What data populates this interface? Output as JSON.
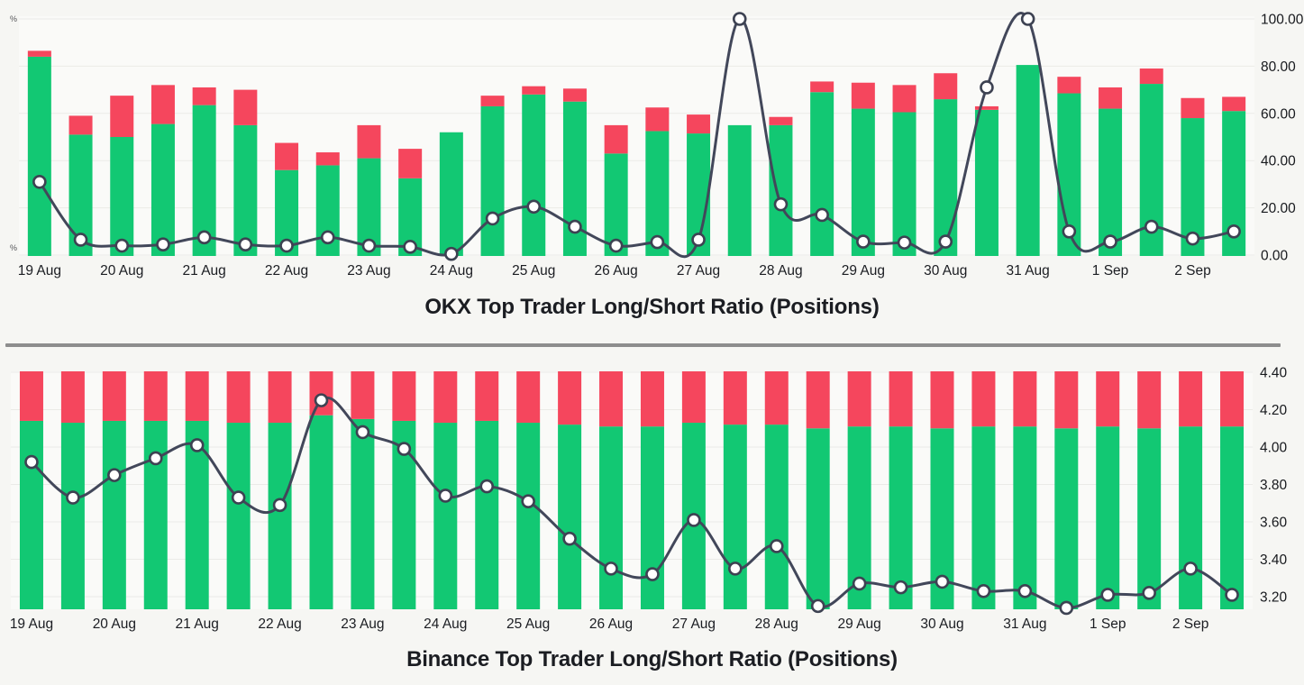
{
  "colors": {
    "long_green": "#12c873",
    "short_red": "#f5465d",
    "line": "#42475a",
    "marker_fill": "#ffffff",
    "marker_stroke": "#3d4252",
    "grid": "#ebebe7",
    "plot_bg": "#fafaf8",
    "page_bg": "#f6f6f3",
    "divider": "#8d8d8d",
    "text_dark": "#1b1d22"
  },
  "divider": {
    "present": true
  },
  "chart_data": [
    {
      "id": "okx",
      "title": "OKX Top Trader Long/Short Ratio (Positions)",
      "type": "stacked-bar+line",
      "categories": [
        "19 Aug",
        "20 Aug",
        "21 Aug",
        "22 Aug",
        "23 Aug",
        "24 Aug",
        "25 Aug",
        "26 Aug",
        "27 Aug",
        "28 Aug",
        "29 Aug",
        "30 Aug",
        "31 Aug",
        "1 Sep",
        "2 Sep"
      ],
      "bars_per_label": 2,
      "bar_base": 0,
      "grid": "on",
      "legend_position": "none",
      "left_axis_fragments": [
        "%",
        "%"
      ],
      "y_axis_right": {
        "min": 0,
        "max": 100,
        "ticks": [
          {
            "value": 100,
            "label": "100.00"
          },
          {
            "value": 80,
            "label": "80.00"
          },
          {
            "value": 60,
            "label": "60.00"
          },
          {
            "value": 40,
            "label": "40.00"
          },
          {
            "value": 20,
            "label": "20.00"
          },
          {
            "value": 0,
            "label": "0.00"
          }
        ]
      },
      "series": [
        {
          "name": "Long",
          "role": "bar-bottom",
          "color_key": "long_green",
          "values": [
            84,
            51,
            50,
            55.5,
            63.5,
            55,
            36,
            38,
            41,
            32.5,
            52,
            63,
            68,
            65,
            43,
            52.5,
            51.5,
            55,
            55,
            69,
            62,
            60.5,
            66,
            61.5,
            80.5,
            68.5,
            62,
            72.5,
            58,
            61
          ]
        },
        {
          "name": "Short",
          "role": "bar-top",
          "color_key": "short_red",
          "values": [
            2.5,
            8,
            17.5,
            16.5,
            7.5,
            15,
            11.5,
            5.5,
            14,
            12.5,
            0,
            4.5,
            3.5,
            5.5,
            12,
            10,
            8,
            0,
            3.5,
            4.5,
            11,
            11.5,
            11,
            1.5,
            0,
            7,
            9,
            6.5,
            8.5,
            6
          ]
        },
        {
          "name": "Ratio",
          "role": "line",
          "color_key": "line",
          "values": [
            31,
            6.5,
            4,
            4.5,
            7.5,
            4.5,
            4,
            7.5,
            4,
            3.5,
            0.5,
            15.5,
            20.5,
            12,
            4,
            5.5,
            6.5,
            100,
            21.5,
            17,
            5.7,
            5.3,
            5.7,
            71,
            100,
            10,
            5.7,
            12,
            7,
            10
          ]
        }
      ]
    },
    {
      "id": "binance",
      "title": "Binance Top Trader Long/Short Ratio (Positions)",
      "type": "stacked-bar+line",
      "categories": [
        "19 Aug",
        "20 Aug",
        "21 Aug",
        "22 Aug",
        "23 Aug",
        "24 Aug",
        "25 Aug",
        "26 Aug",
        "27 Aug",
        "28 Aug",
        "29 Aug",
        "30 Aug",
        "31 Aug",
        "1 Sep",
        "2 Sep"
      ],
      "bars_per_label": 2,
      "bar_base": 3.133,
      "bars_clipped_at_top": true,
      "grid": "on",
      "legend_position": "none",
      "left_axis_fragments": [],
      "y_axis_right": {
        "min": 3.2,
        "max": 4.4,
        "ticks": [
          {
            "value": 4.4,
            "label": "4.40"
          },
          {
            "value": 4.2,
            "label": "4.20"
          },
          {
            "value": 4.0,
            "label": "4.00"
          },
          {
            "value": 3.8,
            "label": "3.80"
          },
          {
            "value": 3.6,
            "label": "3.60"
          },
          {
            "value": 3.4,
            "label": "3.40"
          },
          {
            "value": 3.2,
            "label": "3.20"
          }
        ]
      },
      "series": [
        {
          "name": "Long",
          "role": "bar-bottom",
          "color_key": "long_green",
          "values_absolute_top": [
            4.14,
            4.13,
            4.14,
            4.14,
            4.14,
            4.13,
            4.13,
            4.17,
            4.15,
            4.14,
            4.13,
            4.14,
            4.13,
            4.12,
            4.11,
            4.11,
            4.13,
            4.12,
            4.12,
            4.1,
            4.11,
            4.11,
            4.1,
            4.11,
            4.11,
            4.1,
            4.11,
            4.1,
            4.11,
            4.11
          ]
        },
        {
          "name": "Short",
          "role": "bar-top",
          "color_key": "short_red",
          "clipped_at_axis_top": true
        },
        {
          "name": "Ratio",
          "role": "line",
          "color_key": "line",
          "values": [
            3.92,
            3.73,
            3.85,
            3.94,
            4.01,
            3.73,
            3.69,
            4.25,
            4.08,
            3.99,
            3.74,
            3.79,
            3.71,
            3.51,
            3.35,
            3.32,
            3.61,
            3.35,
            3.47,
            3.15,
            3.27,
            3.25,
            3.28,
            3.23,
            3.23,
            3.14,
            3.21,
            3.22,
            3.35,
            3.21
          ]
        }
      ]
    }
  ]
}
